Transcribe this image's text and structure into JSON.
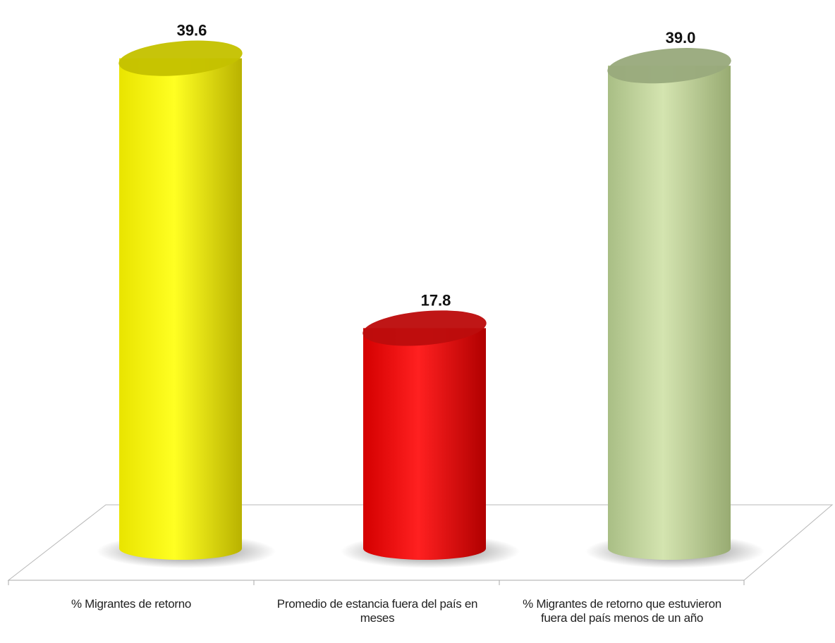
{
  "chart_data": {
    "type": "bar",
    "style": "3d-cylinder",
    "title": "",
    "xlabel": "",
    "ylabel": "",
    "ylim": [
      0,
      41
    ],
    "grid": false,
    "legend": "none",
    "categories": [
      "% Migrantes de retorno",
      "Promedio de estancia fuera del país en meses",
      "% Migrantes de retorno que estuvieron fuera del país menos de un año"
    ],
    "values": [
      39.6,
      17.8,
      39.0
    ],
    "value_labels": [
      "39.6",
      "17.8",
      "39.0"
    ],
    "colors": [
      "#f2ee00",
      "#e81010",
      "#bdd29a"
    ]
  }
}
